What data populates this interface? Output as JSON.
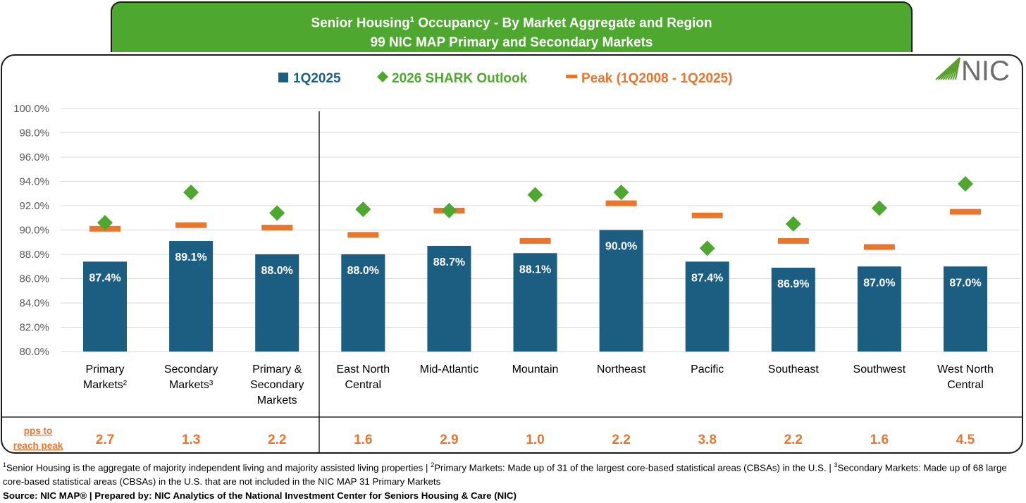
{
  "header": {
    "title_part1": "Senior Housing",
    "title_sup": "1",
    "title_part2": " Occupancy - By Market Aggregate and Region",
    "subtitle": "99 NIC MAP Primary and Secondary Markets"
  },
  "logo": {
    "text": "NIC",
    "color": "#5a9e2e"
  },
  "chart_data": {
    "type": "bar",
    "categories": [
      "Primary Markets²",
      "Secondary Markets³",
      "Primary & Secondary Markets",
      "East North Central",
      "Mid-Atlantic",
      "Mountain",
      "Northeast",
      "Pacific",
      "Southeast",
      "Southwest",
      "West North Central"
    ],
    "category_lines": [
      [
        "Primary",
        "Markets²"
      ],
      [
        "Secondary",
        "Markets³"
      ],
      [
        "Primary &",
        "Secondary",
        "Markets"
      ],
      [
        "East North",
        "Central"
      ],
      [
        "Mid-Atlantic"
      ],
      [
        "Mountain"
      ],
      [
        "Northeast"
      ],
      [
        "Pacific"
      ],
      [
        "Southeast"
      ],
      [
        "Southwest"
      ],
      [
        "West North",
        "Central"
      ]
    ],
    "series": [
      {
        "name": "1Q2025",
        "type": "bar",
        "color": "#1b5e82",
        "values": [
          87.4,
          89.1,
          88.0,
          88.0,
          88.7,
          88.1,
          90.0,
          87.4,
          86.9,
          87.0,
          87.0
        ],
        "labels": [
          "87.4%",
          "89.1%",
          "88.0%",
          "88.0%",
          "88.7%",
          "88.1%",
          "90.0%",
          "87.4%",
          "86.9%",
          "87.0%",
          "87.0%"
        ]
      },
      {
        "name": "2026 SHARK Outlook",
        "type": "diamond",
        "color": "#4ea72e",
        "values": [
          90.6,
          93.1,
          91.4,
          91.7,
          91.6,
          92.9,
          93.1,
          88.5,
          90.5,
          91.8,
          93.8
        ]
      },
      {
        "name": "Peak (1Q2008 - 1Q2025)",
        "type": "dash",
        "color": "#e8762d",
        "values": [
          90.1,
          90.4,
          90.2,
          89.6,
          91.6,
          89.1,
          92.2,
          91.2,
          89.1,
          88.6,
          91.5
        ]
      }
    ],
    "ylim": [
      80,
      100
    ],
    "yticks": [
      "80.0%",
      "82.0%",
      "84.0%",
      "86.0%",
      "88.0%",
      "90.0%",
      "92.0%",
      "94.0%",
      "96.0%",
      "98.0%",
      "100.0%"
    ],
    "grid": true,
    "legend_position": "top",
    "pps_label_lines": [
      "pps to",
      "reach peak"
    ],
    "pps_to_peak": [
      "2.7",
      "1.3",
      "2.2",
      "1.6",
      "2.9",
      "1.0",
      "2.2",
      "3.8",
      "2.2",
      "1.6",
      "4.5"
    ]
  },
  "footer": {
    "note1_sup": "1",
    "note1": "Senior Housing is the aggregate of majority independent living and majority assisted living properties | ",
    "note2_sup": "2",
    "note2": "Primary Markets: Made up of 31 of the largest core-based statistical areas (CBSAs) in the U.S. | ",
    "note3_sup": "3",
    "note3": "Secondary Markets: Made up of 68 large core-based statistical areas (CBSAs) in the U.S. that are not included in the NIC MAP 31 Primary Markets",
    "source": "Source: NIC MAP® | Prepared by: NIC Analytics of the National Investment Center for Seniors Housing & Care (NIC)"
  }
}
